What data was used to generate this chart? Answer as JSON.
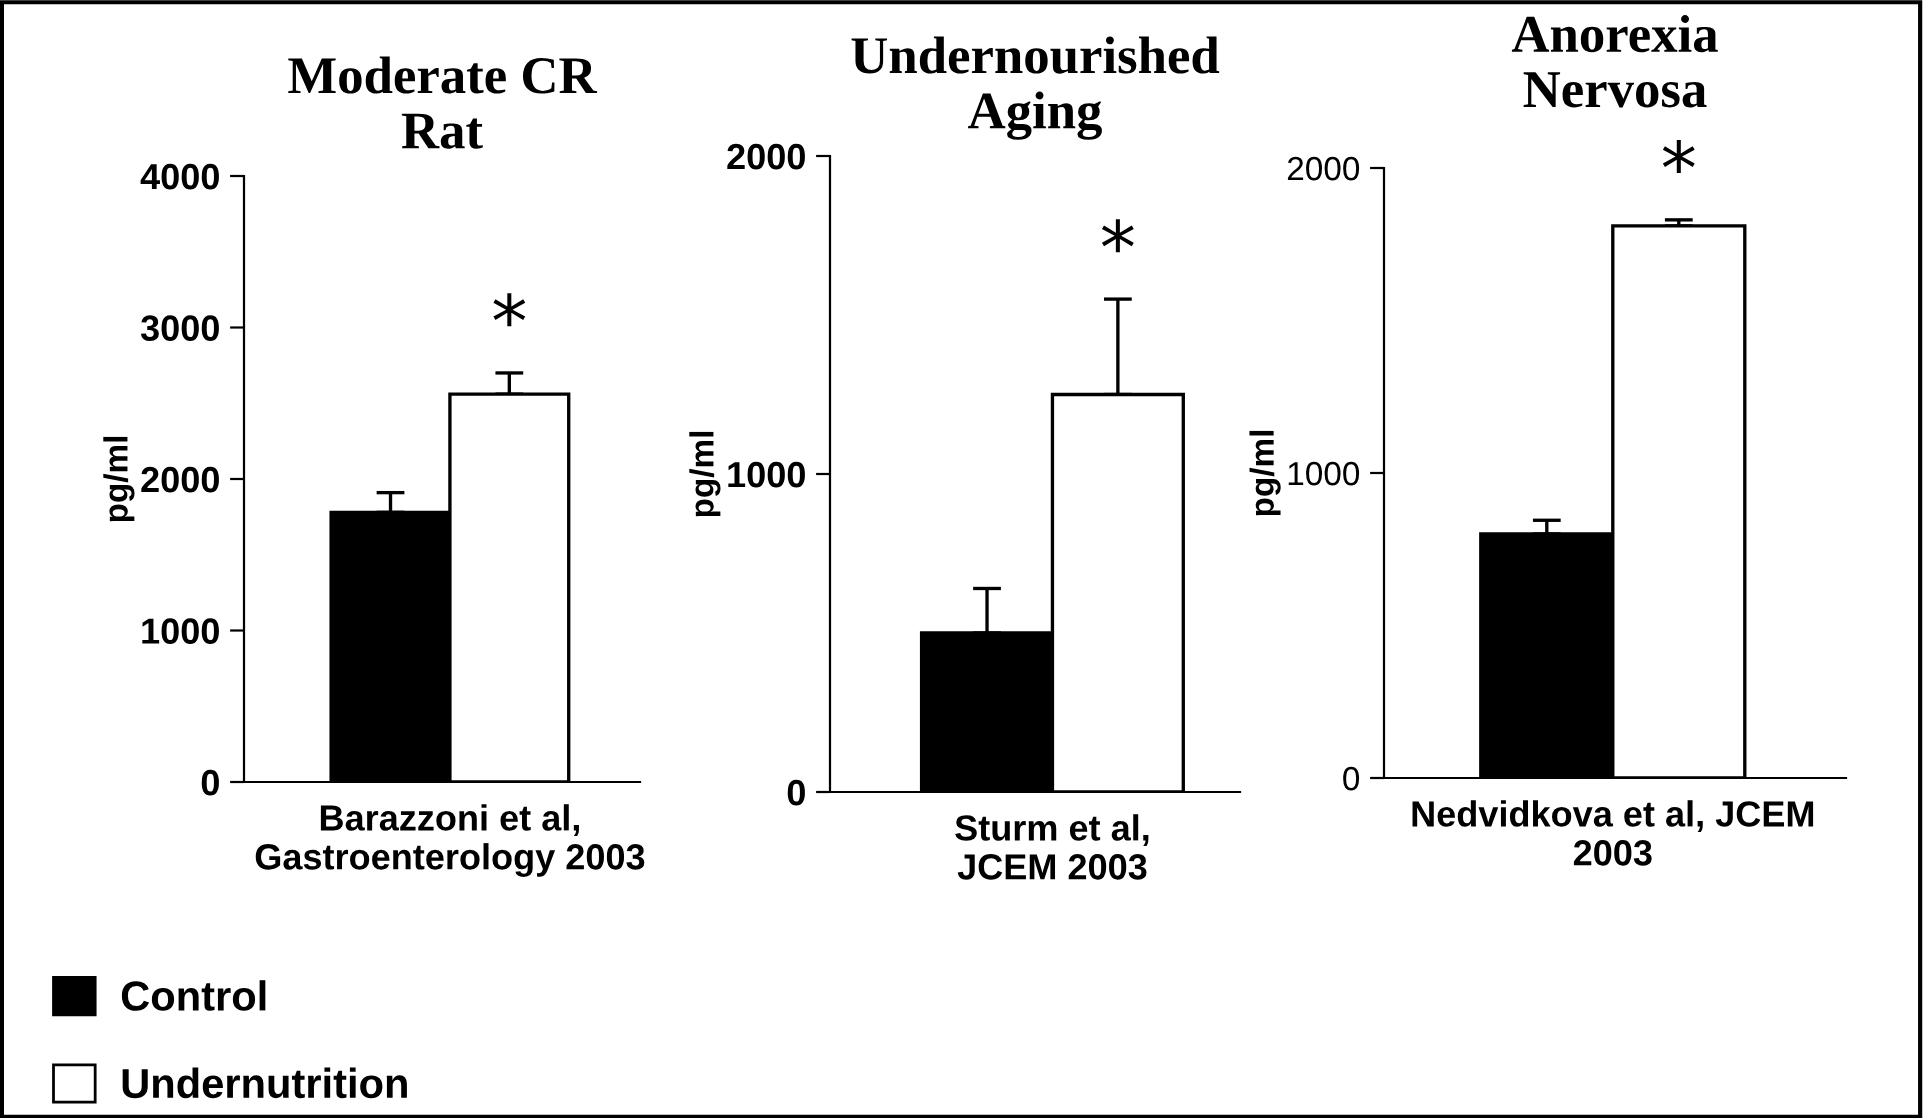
{
  "chart_data": [
    {
      "type": "bar",
      "title": "Moderate CR\nRat",
      "ylabel": "pg/ml",
      "categories": [
        "Barazzoni et al,\nGastroenterology 2003"
      ],
      "ylim": [
        0,
        4000
      ],
      "yticks": [
        0,
        1000,
        2000,
        3000,
        4000
      ],
      "legend": "bottom",
      "annotations": [
        "*"
      ],
      "series": [
        {
          "name": "Control",
          "color": "#000000",
          "values": [
            1780
          ],
          "errors": [
            [
              1780,
              1910
            ]
          ]
        },
        {
          "name": "Undernutrition",
          "color": "#ffffff",
          "values": [
            2560
          ],
          "errors": [
            [
              2560,
              2700
            ]
          ]
        }
      ]
    },
    {
      "type": "bar",
      "title": "Undernourished\nAging",
      "ylabel": "pg/ml",
      "categories": [
        "Sturm et al,\nJCEM 2003"
      ],
      "ylim": [
        0,
        2000
      ],
      "yticks": [
        0,
        1000,
        2000
      ],
      "annotations": [
        "*"
      ],
      "series": [
        {
          "color": "#000000",
          "values": [
            500
          ],
          "errors": [
            [
              500,
              640
            ]
          ]
        },
        {
          "color": "#ffffff",
          "values": [
            1250
          ],
          "errors": [
            [
              1250,
              1550
            ]
          ]
        }
      ]
    },
    {
      "type": "bar",
      "title": "Anorexia\nNervosa",
      "ylabel": "pg/ml",
      "categories": [
        "Nedvidkova et al, JCEM\n2003"
      ],
      "ylim": [
        0,
        2000
      ],
      "yticks": [
        0,
        1000,
        2000
      ],
      "annotations": [
        "*"
      ],
      "series": [
        {
          "color": "#000000",
          "values": [
            800
          ],
          "errors": [
            [
              800,
              845
            ]
          ]
        },
        {
          "color": "#ffffff",
          "values": [
            1810
          ],
          "errors": [
            [
              1810,
              1830
            ]
          ]
        }
      ]
    }
  ]
}
